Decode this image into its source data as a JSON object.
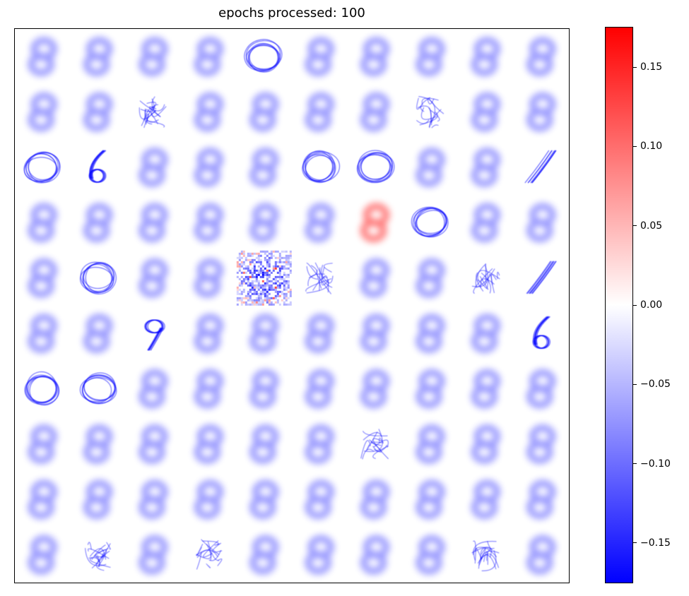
{
  "chart_data": {
    "type": "heatmap",
    "title": "epochs processed: 100",
    "grid_rows": 10,
    "grid_cols": 10,
    "cell_kinds": [
      [
        "faint8",
        "faint8",
        "faint8",
        "faint8",
        "circle",
        "faint8",
        "faint8",
        "faint8",
        "faint8",
        "faint8"
      ],
      [
        "faint8",
        "faint8",
        "scribble",
        "faint8",
        "faint8",
        "faint8",
        "faint8",
        "scribble",
        "faint8",
        "faint8"
      ],
      [
        "circle",
        "six",
        "faint8",
        "faint8",
        "faint8",
        "circle",
        "circle",
        "faint8",
        "faint8",
        "slash"
      ],
      [
        "faint8",
        "faint8",
        "faint8",
        "faint8",
        "faint8",
        "faint8",
        "red8",
        "circle",
        "faint8",
        "faint8"
      ],
      [
        "faint8",
        "circle",
        "faint8",
        "faint8",
        "noise",
        "scribble",
        "faint8",
        "faint8",
        "scribble",
        "slash"
      ],
      [
        "faint8",
        "faint8",
        "nine",
        "faint8",
        "faint8",
        "faint8",
        "faint8",
        "faint8",
        "faint8",
        "six"
      ],
      [
        "circle",
        "circle",
        "faint8",
        "faint8",
        "faint8",
        "faint8",
        "faint8",
        "faint8",
        "faint8",
        "faint8"
      ],
      [
        "faint8",
        "faint8",
        "faint8",
        "faint8",
        "faint8",
        "faint8",
        "scribble",
        "faint8",
        "faint8",
        "faint8"
      ],
      [
        "faint8",
        "faint8",
        "faint8",
        "faint8",
        "faint8",
        "faint8",
        "faint8",
        "faint8",
        "faint8",
        "faint8"
      ],
      [
        "faint8",
        "scribble",
        "faint8",
        "scribble",
        "faint8",
        "faint8",
        "faint8",
        "faint8",
        "scribble",
        "faint8"
      ]
    ],
    "colorbar": {
      "min": -0.175,
      "max": 0.175,
      "colormap": "bwr",
      "colors": {
        "low": "#0000ff",
        "mid": "#ffffff",
        "high": "#ff0000"
      },
      "ticks": [
        0.15,
        0.1,
        0.05,
        0.0,
        -0.05,
        -0.1,
        -0.15
      ],
      "tick_labels": [
        "0.15",
        "0.10",
        "0.05",
        "0.00",
        "−0.05",
        "−0.10",
        "−0.15"
      ]
    },
    "xlabel": "",
    "ylabel": "",
    "x_ticks": false,
    "y_ticks": false,
    "grid": false,
    "legend": "none"
  }
}
